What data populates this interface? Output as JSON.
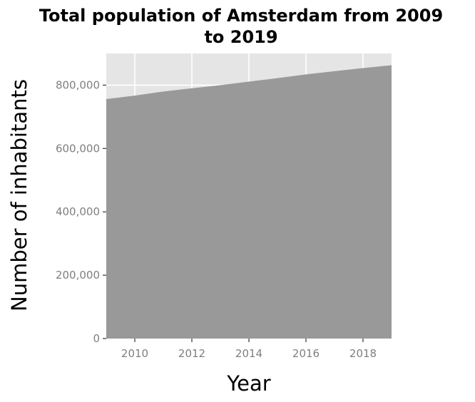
{
  "chart_data": {
    "type": "area",
    "title_lines": [
      "Total population of Amsterdam from 2009",
      "to 2019"
    ],
    "xlabel": "Year",
    "ylabel": "Number of inhabitants",
    "x": [
      2009,
      2010,
      2011,
      2012,
      2013,
      2014,
      2015,
      2016,
      2017,
      2018,
      2019
    ],
    "values": [
      756000,
      767000,
      780000,
      790000,
      800000,
      811000,
      822000,
      834000,
      844000,
      854000,
      863000
    ],
    "xlim": [
      2009,
      2019
    ],
    "ylim": [
      0,
      900000
    ],
    "x_ticks": [
      {
        "value": 2010,
        "label": "2010"
      },
      {
        "value": 2012,
        "label": "2012"
      },
      {
        "value": 2014,
        "label": "2014"
      },
      {
        "value": 2016,
        "label": "2016"
      },
      {
        "value": 2018,
        "label": "2018"
      }
    ],
    "y_ticks": [
      {
        "value": 0,
        "label": "0"
      },
      {
        "value": 200000,
        "label": "200,000"
      },
      {
        "value": 400000,
        "label": "400,000"
      },
      {
        "value": 600000,
        "label": "600,000"
      },
      {
        "value": 800000,
        "label": "800,000"
      }
    ],
    "grid": true,
    "colors": {
      "panel": "#e5e5e5",
      "grid": "#ffffff",
      "area": "#999999",
      "tick_text": "#7f7f7f",
      "axis_text": "#000000"
    }
  }
}
